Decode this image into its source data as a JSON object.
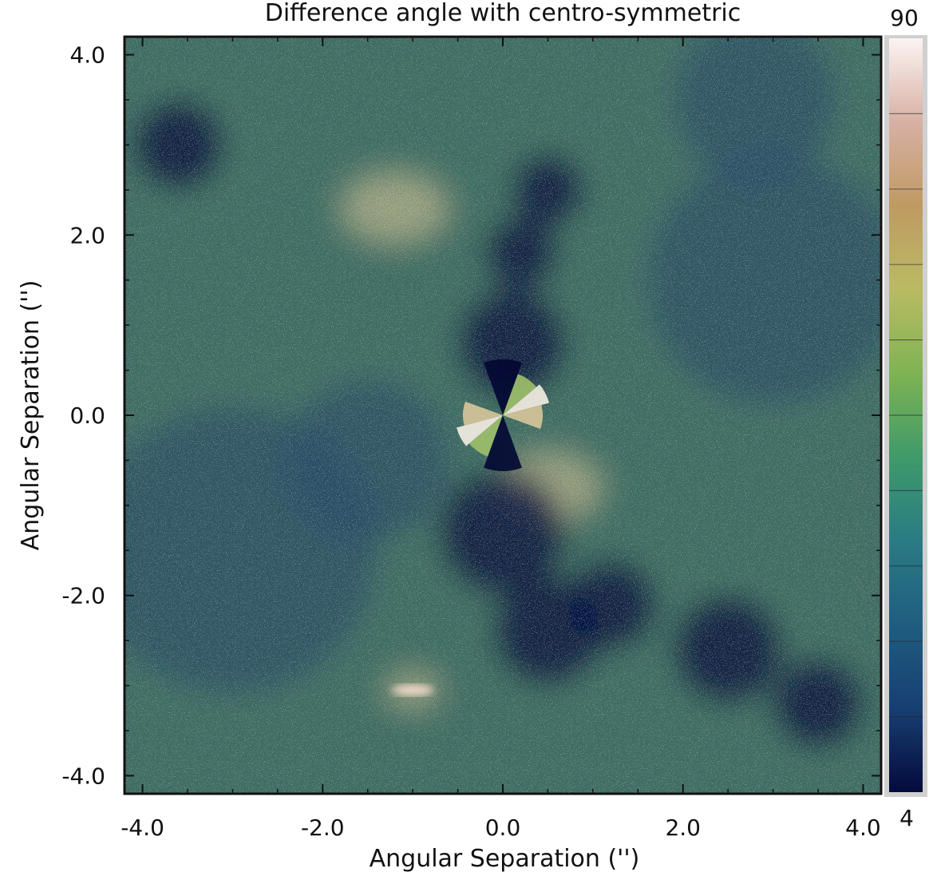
{
  "chart_data": {
    "type": "heatmap",
    "title": "Difference angle with centro-symmetric",
    "xlabel": "Angular Separation ('')",
    "ylabel": "Angular Separation ('')",
    "xlim": [
      -4.2,
      4.2
    ],
    "ylim": [
      -4.2,
      4.2
    ],
    "x_ticks": [
      -4.0,
      -2.0,
      0.0,
      2.0,
      4.0
    ],
    "y_ticks": [
      -4.0,
      -2.0,
      0.0,
      2.0,
      4.0
    ],
    "x_tick_labels": [
      "-4.0",
      "-2.0",
      "0.0",
      "2.0",
      "4.0"
    ],
    "y_tick_labels": [
      "-4.0",
      "-2.0",
      "0.0",
      "2.0",
      "4.0"
    ],
    "colorbar": {
      "min": 4,
      "max": 90,
      "min_label": "4",
      "max_label": "90",
      "colors": [
        "#050a3c",
        "#173f72",
        "#1f5d80",
        "#2a7b84",
        "#3f9a6a",
        "#7fb353",
        "#b9bb63",
        "#bf9a63",
        "#d8b0a4",
        "#fbf4f2"
      ]
    },
    "features": {
      "background": "noisy difference-angle map, green/blue speckle",
      "dark_lobes": [
        {
          "x": 0.1,
          "y": 0.8,
          "r": 0.6
        },
        {
          "x": 0.0,
          "y": -1.3,
          "r": 0.7
        },
        {
          "x": 1.2,
          "y": -2.1,
          "r": 0.5
        },
        {
          "x": 0.5,
          "y": -2.4,
          "r": 0.6
        },
        {
          "x": 0.5,
          "y": 2.5,
          "r": 0.4
        },
        {
          "x": 0.2,
          "y": 1.8,
          "r": 0.4
        },
        {
          "x": -3.6,
          "y": 3.0,
          "r": 0.5
        },
        {
          "x": 2.5,
          "y": -2.6,
          "r": 0.6
        },
        {
          "x": 3.5,
          "y": -3.2,
          "r": 0.5
        }
      ],
      "bright_regions": [
        {
          "x": -1.2,
          "y": 2.3,
          "r": 0.5
        },
        {
          "x": 0.5,
          "y": -0.8,
          "r": 0.5
        },
        {
          "x": -1.0,
          "y": -3.05,
          "r": 0.25
        }
      ]
    }
  }
}
